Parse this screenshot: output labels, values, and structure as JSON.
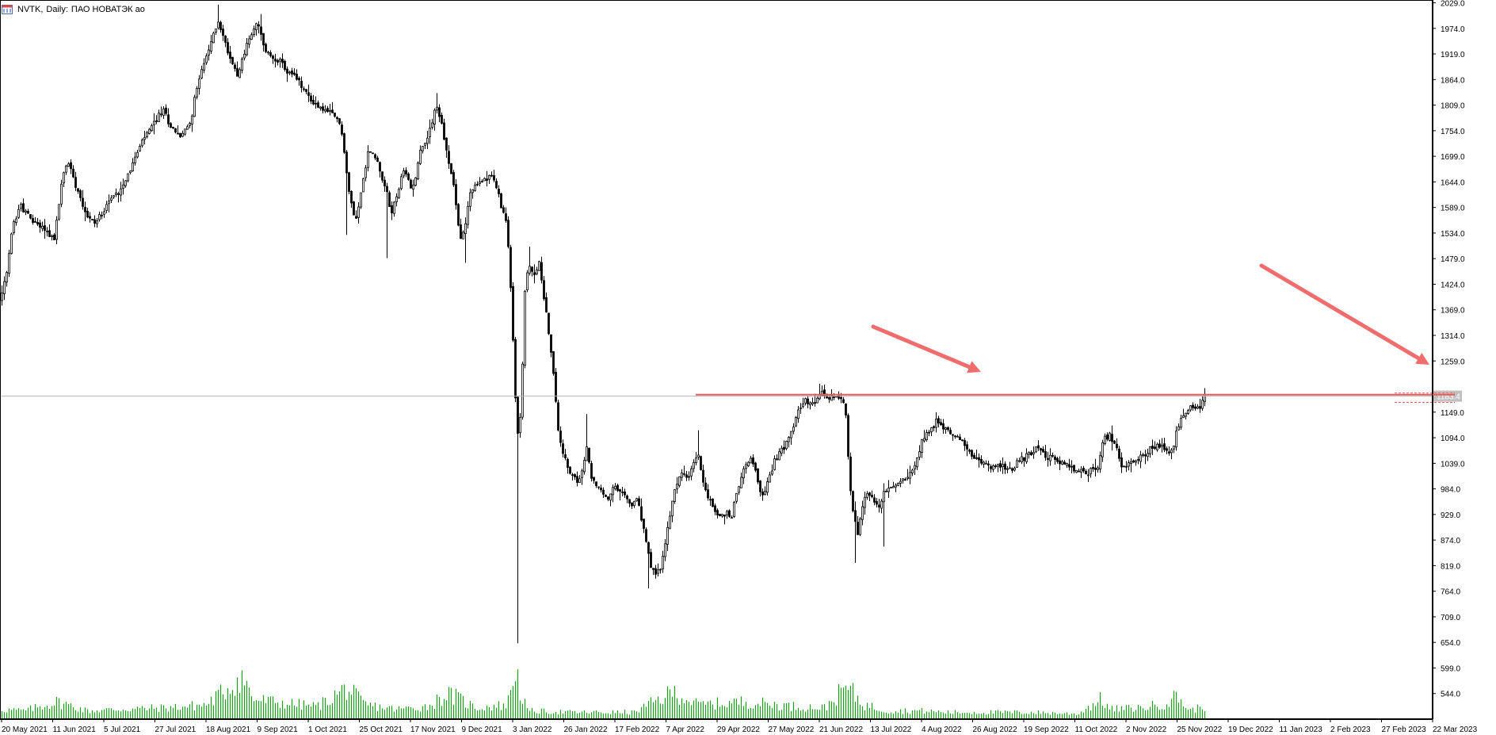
{
  "header": {
    "symbol": "NVTK,",
    "timeframe": "Daily:",
    "description": "ПАО НОВАТЭК ао"
  },
  "colors": {
    "candle": "#000000",
    "volume": "#16a116",
    "annotation": "#f06d6d",
    "level_line": "#ee5a5a",
    "crosshair": "#b5b5b5",
    "axis_text": "#000000",
    "price_tag_bg": "#c0c0c0"
  },
  "chart_data": {
    "type": "candlestick",
    "y_axis": {
      "ticks": [
        "2029.0",
        "1974.0",
        "1919.0",
        "1864.0",
        "1809.0",
        "1754.0",
        "1699.0",
        "1644.0",
        "1589.0",
        "1534.0",
        "1479.0",
        "1424.0",
        "1369.0",
        "1314.0",
        "1259.0",
        "1149.0",
        "1094.0",
        "1039.0",
        "984.0",
        "929.0",
        "874.0",
        "819.0",
        "764.0",
        "709.0",
        "654.0",
        "599.0",
        "544.0"
      ],
      "range": [
        489.0,
        2035.0
      ],
      "current_price": "1183.4"
    },
    "x_axis": {
      "labels": [
        "20 May 2021",
        "11 Jun 2021",
        "5 Jul 2021",
        "27 Jul 2021",
        "18 Aug 2021",
        "9 Sep 2021",
        "1 Oct 2021",
        "25 Oct 2021",
        "17 Nov 2021",
        "9 Dec 2021",
        "3 Jan 2022",
        "26 Jan 2022",
        "17 Feb 2022",
        "7 Apr 2022",
        "29 Apr 2022",
        "27 May 2022",
        "21 Jun 2022",
        "13 Jul 2022",
        "4 Aug 2022",
        "26 Aug 2022",
        "19 Sep 2022",
        "11 Oct 2022",
        "2 Nov 2022",
        "25 Nov 2022",
        "19 Dec 2022",
        "11 Jan 2023",
        "2 Feb 2023",
        "27 Feb 2023",
        "22 Mar 2023"
      ]
    },
    "price_anchors": [
      [
        0,
        1390
      ],
      [
        8,
        1445
      ],
      [
        15,
        1545
      ],
      [
        25,
        1595
      ],
      [
        40,
        1560
      ],
      [
        55,
        1545
      ],
      [
        68,
        1520
      ],
      [
        78,
        1650
      ],
      [
        85,
        1690
      ],
      [
        95,
        1640
      ],
      [
        110,
        1570
      ],
      [
        120,
        1555
      ],
      [
        135,
        1600
      ],
      [
        150,
        1625
      ],
      [
        165,
        1675
      ],
      [
        180,
        1735
      ],
      [
        192,
        1765
      ],
      [
        205,
        1800
      ],
      [
        215,
        1765
      ],
      [
        228,
        1740
      ],
      [
        240,
        1775
      ],
      [
        252,
        1880
      ],
      [
        260,
        1910
      ],
      [
        268,
        1955
      ],
      [
        275,
        1990
      ],
      [
        285,
        1935
      ],
      [
        290,
        1910
      ],
      [
        300,
        1875
      ],
      [
        310,
        1935
      ],
      [
        318,
        1965
      ],
      [
        325,
        1985
      ],
      [
        332,
        1935
      ],
      [
        340,
        1915
      ],
      [
        352,
        1905
      ],
      [
        362,
        1880
      ],
      [
        372,
        1870
      ],
      [
        380,
        1850
      ],
      [
        392,
        1820
      ],
      [
        402,
        1805
      ],
      [
        412,
        1795
      ],
      [
        422,
        1785
      ],
      [
        430,
        1765
      ],
      [
        440,
        1620
      ],
      [
        448,
        1560
      ],
      [
        455,
        1620
      ],
      [
        465,
        1715
      ],
      [
        475,
        1690
      ],
      [
        485,
        1640
      ],
      [
        493,
        1575
      ],
      [
        500,
        1615
      ],
      [
        510,
        1670
      ],
      [
        520,
        1625
      ],
      [
        530,
        1710
      ],
      [
        540,
        1745
      ],
      [
        550,
        1810
      ],
      [
        558,
        1760
      ],
      [
        565,
        1690
      ],
      [
        572,
        1640
      ],
      [
        580,
        1520
      ],
      [
        586,
        1540
      ],
      [
        592,
        1620
      ],
      [
        600,
        1635
      ],
      [
        610,
        1650
      ],
      [
        618,
        1660
      ],
      [
        625,
        1640
      ],
      [
        632,
        1590
      ],
      [
        638,
        1560
      ],
      [
        642,
        1495
      ],
      [
        646,
        1340
      ],
      [
        650,
        1180
      ],
      [
        654,
        1080
      ],
      [
        658,
        1200
      ],
      [
        662,
        1410
      ],
      [
        666,
        1460
      ],
      [
        670,
        1455
      ],
      [
        675,
        1440
      ],
      [
        680,
        1470
      ],
      [
        686,
        1400
      ],
      [
        692,
        1320
      ],
      [
        698,
        1230
      ],
      [
        704,
        1110
      ],
      [
        712,
        1050
      ],
      [
        720,
        1010
      ],
      [
        728,
        1000
      ],
      [
        734,
        1020
      ],
      [
        740,
        1070
      ],
      [
        746,
        1010
      ],
      [
        752,
        990
      ],
      [
        760,
        975
      ],
      [
        768,
        960
      ],
      [
        775,
        990
      ],
      [
        782,
        975
      ],
      [
        790,
        965
      ],
      [
        796,
        945
      ],
      [
        802,
        965
      ],
      [
        808,
        930
      ],
      [
        814,
        880
      ],
      [
        820,
        820
      ],
      [
        826,
        800
      ],
      [
        832,
        810
      ],
      [
        838,
        850
      ],
      [
        844,
        920
      ],
      [
        850,
        970
      ],
      [
        856,
        1010
      ],
      [
        862,
        1020
      ],
      [
        868,
        1000
      ],
      [
        874,
        1040
      ],
      [
        880,
        1060
      ],
      [
        886,
        1010
      ],
      [
        892,
        970
      ],
      [
        898,
        950
      ],
      [
        904,
        930
      ],
      [
        910,
        925
      ],
      [
        916,
        935
      ],
      [
        922,
        920
      ],
      [
        928,
        970
      ],
      [
        934,
        1000
      ],
      [
        940,
        1040
      ],
      [
        946,
        1050
      ],
      [
        952,
        1030
      ],
      [
        958,
        980
      ],
      [
        964,
        970
      ],
      [
        970,
        1010
      ],
      [
        976,
        1040
      ],
      [
        982,
        1060
      ],
      [
        988,
        1070
      ],
      [
        994,
        1100
      ],
      [
        1000,
        1120
      ],
      [
        1008,
        1160
      ],
      [
        1016,
        1170
      ],
      [
        1024,
        1165
      ],
      [
        1030,
        1175
      ],
      [
        1036,
        1190
      ],
      [
        1042,
        1180
      ],
      [
        1048,
        1175
      ],
      [
        1054,
        1185
      ],
      [
        1060,
        1180
      ],
      [
        1066,
        1170
      ],
      [
        1070,
        1060
      ],
      [
        1074,
        950
      ],
      [
        1078,
        920
      ],
      [
        1082,
        880
      ],
      [
        1086,
        930
      ],
      [
        1090,
        960
      ],
      [
        1096,
        980
      ],
      [
        1102,
        960
      ],
      [
        1108,
        940
      ],
      [
        1114,
        970
      ],
      [
        1120,
        985
      ],
      [
        1128,
        990
      ],
      [
        1136,
        1000
      ],
      [
        1144,
        1010
      ],
      [
        1152,
        1030
      ],
      [
        1160,
        1070
      ],
      [
        1166,
        1100
      ],
      [
        1174,
        1110
      ],
      [
        1180,
        1130
      ],
      [
        1188,
        1120
      ],
      [
        1196,
        1110
      ],
      [
        1204,
        1100
      ],
      [
        1212,
        1090
      ],
      [
        1220,
        1070
      ],
      [
        1228,
        1050
      ],
      [
        1236,
        1040
      ],
      [
        1244,
        1040
      ],
      [
        1252,
        1030
      ],
      [
        1260,
        1035
      ],
      [
        1268,
        1030
      ],
      [
        1276,
        1020
      ],
      [
        1282,
        1040
      ],
      [
        1290,
        1050
      ],
      [
        1298,
        1060
      ],
      [
        1306,
        1070
      ],
      [
        1314,
        1065
      ],
      [
        1322,
        1055
      ],
      [
        1330,
        1045
      ],
      [
        1338,
        1040
      ],
      [
        1346,
        1035
      ],
      [
        1354,
        1025
      ],
      [
        1362,
        1020
      ],
      [
        1370,
        1020
      ],
      [
        1378,
        1025
      ],
      [
        1386,
        1030
      ],
      [
        1392,
        1090
      ],
      [
        1398,
        1100
      ],
      [
        1404,
        1090
      ],
      [
        1410,
        1060
      ],
      [
        1416,
        1030
      ],
      [
        1422,
        1035
      ],
      [
        1428,
        1040
      ],
      [
        1436,
        1050
      ],
      [
        1444,
        1060
      ],
      [
        1452,
        1070
      ],
      [
        1460,
        1075
      ],
      [
        1468,
        1070
      ],
      [
        1476,
        1055
      ],
      [
        1480,
        1070
      ],
      [
        1484,
        1110
      ],
      [
        1490,
        1130
      ],
      [
        1496,
        1150
      ],
      [
        1502,
        1160
      ],
      [
        1508,
        1155
      ],
      [
        1514,
        1165
      ],
      [
        1519,
        1183
      ]
    ],
    "low_spikes": [
      [
        652,
        652
      ],
      [
        1080,
        825
      ],
      [
        1114,
        860
      ],
      [
        818,
        770
      ],
      [
        586,
        1470
      ],
      [
        488,
        1480
      ],
      [
        437,
        1530
      ]
    ],
    "high_spikes": [
      [
        276,
        2025
      ],
      [
        328,
        2005
      ],
      [
        552,
        1835
      ],
      [
        668,
        1505
      ],
      [
        740,
        1145
      ],
      [
        880,
        1110
      ],
      [
        1034,
        1210
      ]
    ],
    "volume_anchors": [
      [
        0,
        12
      ],
      [
        30,
        10
      ],
      [
        72,
        22
      ],
      [
        110,
        10
      ],
      [
        150,
        12
      ],
      [
        210,
        14
      ],
      [
        260,
        18
      ],
      [
        305,
        55
      ],
      [
        320,
        25
      ],
      [
        360,
        20
      ],
      [
        400,
        16
      ],
      [
        437,
        40
      ],
      [
        460,
        18
      ],
      [
        500,
        12
      ],
      [
        540,
        16
      ],
      [
        563,
        32
      ],
      [
        575,
        28
      ],
      [
        600,
        14
      ],
      [
        640,
        18
      ],
      [
        650,
        70
      ],
      [
        655,
        40
      ],
      [
        665,
        10
      ],
      [
        720,
        8
      ],
      [
        800,
        8
      ],
      [
        825,
        22
      ],
      [
        850,
        35
      ],
      [
        880,
        18
      ],
      [
        940,
        22
      ],
      [
        1000,
        16
      ],
      [
        1040,
        14
      ],
      [
        1068,
        42
      ],
      [
        1090,
        18
      ],
      [
        1120,
        10
      ],
      [
        1160,
        10
      ],
      [
        1200,
        8
      ],
      [
        1260,
        8
      ],
      [
        1300,
        8
      ],
      [
        1360,
        6
      ],
      [
        1390,
        26
      ],
      [
        1400,
        12
      ],
      [
        1440,
        14
      ],
      [
        1470,
        20
      ],
      [
        1486,
        30
      ],
      [
        1500,
        10
      ],
      [
        1519,
        16
      ]
    ],
    "annotations": {
      "resistance_level": 1190,
      "arrows": 2
    }
  }
}
